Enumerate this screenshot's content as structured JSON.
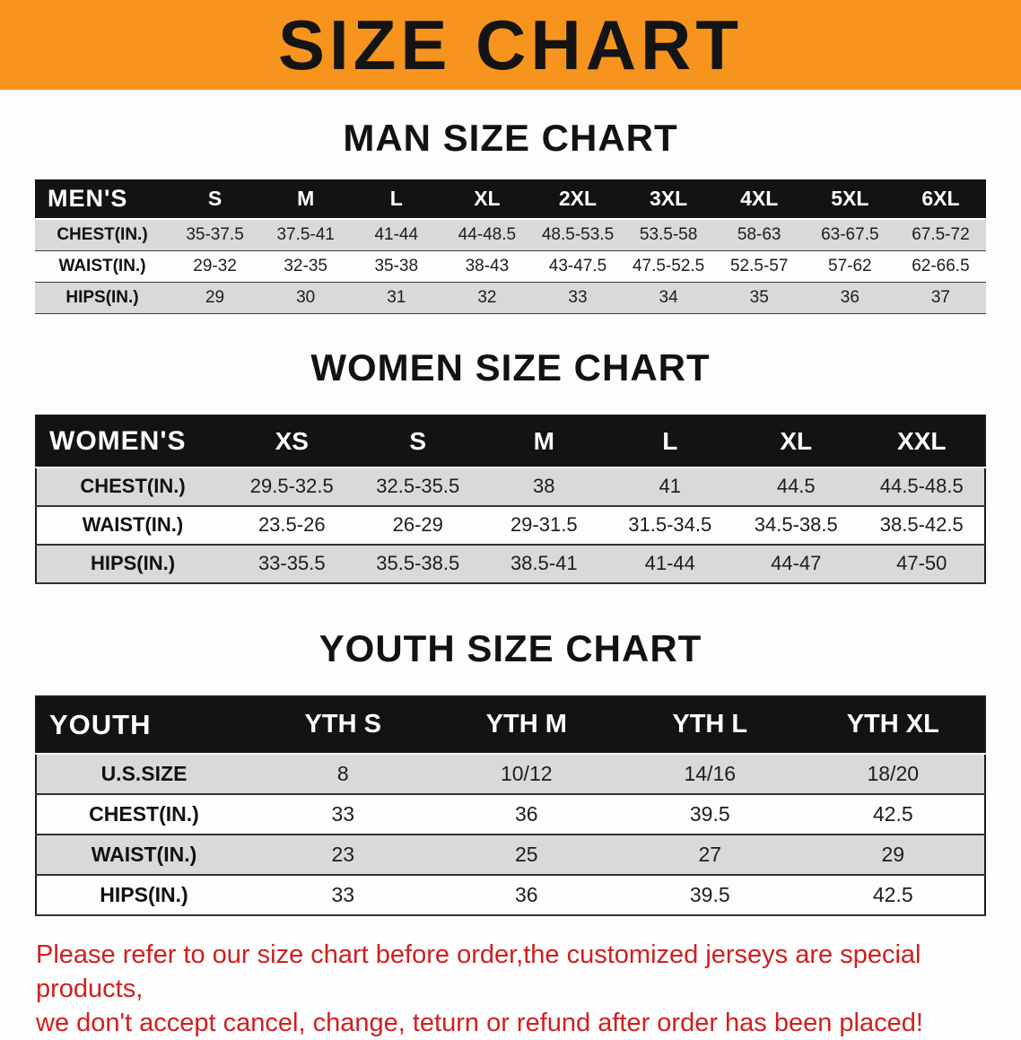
{
  "banner": {
    "title": "SIZE CHART",
    "bg_color": "#f7941d",
    "text_color": "#141414"
  },
  "sections": [
    {
      "heading": "MAN SIZE CHART",
      "table": {
        "header": [
          "MEN'S",
          "S",
          "M",
          "L",
          "XL",
          "2XL",
          "3XL",
          "4XL",
          "5XL",
          "6XL"
        ],
        "rows": [
          [
            "CHEST(IN.)",
            "35-37.5",
            "37.5-41",
            "41-44",
            "44-48.5",
            "48.5-53.5",
            "53.5-58",
            "58-63",
            "63-67.5",
            "67.5-72"
          ],
          [
            "WAIST(IN.)",
            "29-32",
            "32-35",
            "35-38",
            "38-43",
            "43-47.5",
            "47.5-52.5",
            "52.5-57",
            "57-62",
            "62-66.5"
          ],
          [
            "HIPS(IN.)",
            "29",
            "30",
            "31",
            "32",
            "33",
            "34",
            "35",
            "36",
            "37"
          ]
        ]
      }
    },
    {
      "heading": "WOMEN SIZE CHART",
      "table": {
        "header": [
          "WOMEN'S",
          "XS",
          "S",
          "M",
          "L",
          "XL",
          "XXL"
        ],
        "rows": [
          [
            "CHEST(IN.)",
            "29.5-32.5",
            "32.5-35.5",
            "38",
            "41",
            "44.5",
            "44.5-48.5"
          ],
          [
            "WAIST(IN.)",
            "23.5-26",
            "26-29",
            "29-31.5",
            "31.5-34.5",
            "34.5-38.5",
            "38.5-42.5"
          ],
          [
            "HIPS(IN.)",
            "33-35.5",
            "35.5-38.5",
            "38.5-41",
            "41-44",
            "44-47",
            "47-50"
          ]
        ]
      }
    },
    {
      "heading": "YOUTH SIZE CHART",
      "table": {
        "header": [
          "YOUTH",
          "YTH S",
          "YTH M",
          "YTH L",
          "YTH XL"
        ],
        "rows": [
          [
            "U.S.SIZE",
            "8",
            "10/12",
            "14/16",
            "18/20"
          ],
          [
            "CHEST(IN.)",
            "33",
            "36",
            "39.5",
            "42.5"
          ],
          [
            "WAIST(IN.)",
            "23",
            "25",
            "27",
            "29"
          ],
          [
            "HIPS(IN.)",
            "33",
            "36",
            "39.5",
            "42.5"
          ]
        ]
      }
    }
  ],
  "disclaimer": {
    "line1": "Please refer to our size chart before order,the customized jerseys are special products,",
    "line2": "we don't accept cancel, change, teturn or refund after order has been placed!",
    "color": "#d01f1f"
  }
}
